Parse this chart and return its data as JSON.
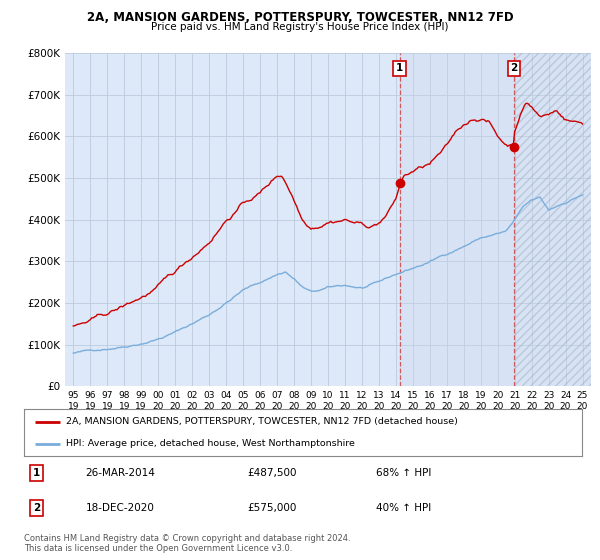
{
  "title_line1": "2A, MANSION GARDENS, POTTERSPURY, TOWCESTER, NN12 7FD",
  "title_line2": "Price paid vs. HM Land Registry's House Price Index (HPI)",
  "legend_label_red": "2A, MANSION GARDENS, POTTERSPURY, TOWCESTER, NN12 7FD (detached house)",
  "legend_label_blue": "HPI: Average price, detached house, West Northamptonshire",
  "footnote": "Contains HM Land Registry data © Crown copyright and database right 2024.\nThis data is licensed under the Open Government Licence v3.0.",
  "transaction1_date": "26-MAR-2014",
  "transaction1_price": "£487,500",
  "transaction1_hpi": "68% ↑ HPI",
  "transaction2_date": "18-DEC-2020",
  "transaction2_price": "£575,000",
  "transaction2_hpi": "40% ↑ HPI",
  "vline1_x": 2014.23,
  "vline2_x": 2020.97,
  "marker1_x": 2014.23,
  "marker1_y": 487500,
  "marker2_x": 2020.97,
  "marker2_y": 575000,
  "ylim": [
    0,
    800000
  ],
  "xlim": [
    1994.5,
    2025.5
  ],
  "plot_bg": "#dde8f8",
  "red_color": "#cc0000",
  "blue_color": "#7aaddb",
  "grid_color": "#bbccdd",
  "yticks": [
    0,
    100000,
    200000,
    300000,
    400000,
    500000,
    600000,
    700000,
    800000
  ],
  "ytick_labels": [
    "£0",
    "£100K",
    "£200K",
    "£300K",
    "£400K",
    "£500K",
    "£600K",
    "£700K",
    "£800K"
  ],
  "xtick_labels": [
    "95",
    "96",
    "97",
    "98",
    "99",
    "00",
    "01",
    "02",
    "03",
    "04",
    "05",
    "06",
    "07",
    "08",
    "09",
    "10",
    "11",
    "12",
    "13",
    "14",
    "15",
    "16",
    "17",
    "18",
    "19",
    "20",
    "21",
    "22",
    "23",
    "24",
    "25"
  ],
  "xticks": [
    1995,
    1996,
    1997,
    1998,
    1999,
    2000,
    2001,
    2002,
    2003,
    2004,
    2005,
    2006,
    2007,
    2008,
    2009,
    2010,
    2011,
    2012,
    2013,
    2014,
    2015,
    2016,
    2017,
    2018,
    2019,
    2020,
    2021,
    2022,
    2023,
    2024,
    2025
  ]
}
